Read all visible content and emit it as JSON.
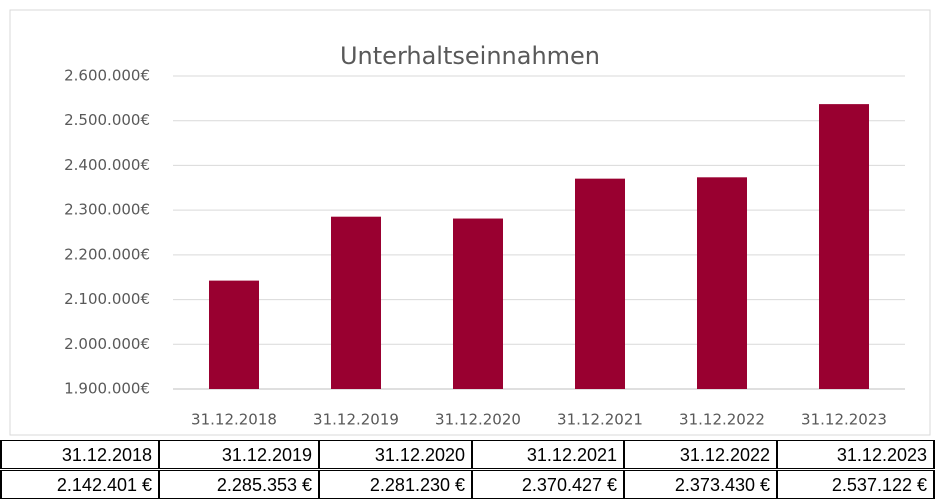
{
  "chart_data": {
    "type": "bar",
    "title": "Unterhaltseinnahmen",
    "categories": [
      "31.12.2018",
      "31.12.2019",
      "31.12.2020",
      "31.12.2021",
      "31.12.2022",
      "31.12.2023"
    ],
    "values": [
      2142401,
      2285353,
      2281230,
      2370427,
      2373430,
      2537122
    ],
    "value_labels": [
      "2.142.401 €",
      "2.285.353 €",
      "2.281.230 €",
      "2.370.427 €",
      "2.373.430 €",
      "2.537.122 €"
    ],
    "color": "#990030",
    "ylim": [
      1900000,
      2600000
    ],
    "yticks": [
      {
        "value": 1900000,
        "label": "1.900.000€"
      },
      {
        "value": 2000000,
        "label": "2.000.000€"
      },
      {
        "value": 2100000,
        "label": "2.100.000€"
      },
      {
        "value": 2200000,
        "label": "2.200.000€"
      },
      {
        "value": 2300000,
        "label": "2.300.000€"
      },
      {
        "value": 2400000,
        "label": "2.400.000€"
      },
      {
        "value": 2500000,
        "label": "2.500.000€"
      },
      {
        "value": 2600000,
        "label": "2.600.000€"
      }
    ],
    "grid": true
  }
}
